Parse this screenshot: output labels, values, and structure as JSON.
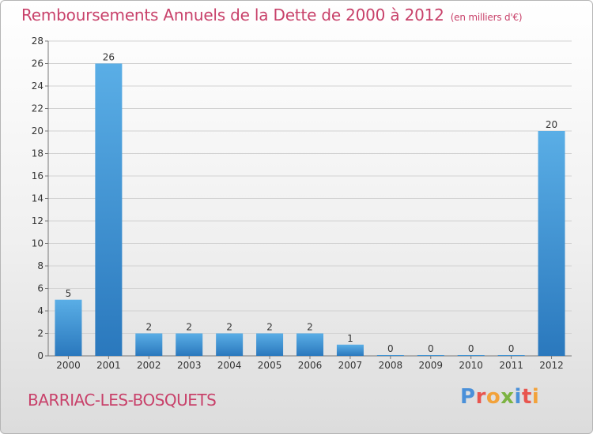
{
  "header": {
    "title": "Remboursements Annuels de la Dette de 2000 à 2012",
    "unit": "(en milliers d'€)"
  },
  "footer": {
    "city": "BARRIAC-LES-BOSQUETS",
    "logo_text": "Proxiti",
    "logo_colors": [
      "#4a90d9",
      "#e8554e",
      "#f2a23b",
      "#7cb342",
      "#4a90d9",
      "#e8554e",
      "#f2a23b"
    ]
  },
  "chart_data": {
    "type": "bar",
    "title": "Remboursements Annuels de la Dette de 2000 à 2012",
    "xlabel": "",
    "ylabel": "",
    "categories": [
      "2000",
      "2001",
      "2002",
      "2003",
      "2004",
      "2005",
      "2006",
      "2007",
      "2008",
      "2009",
      "2010",
      "2011",
      "2012"
    ],
    "values": [
      5,
      26,
      2,
      2,
      2,
      2,
      2,
      1,
      0,
      0,
      0,
      0,
      20
    ],
    "ylim": [
      0,
      28
    ],
    "yticks": [
      0,
      2,
      4,
      6,
      8,
      10,
      12,
      14,
      16,
      18,
      20,
      22,
      24,
      26,
      28
    ],
    "grid": true,
    "bar_color_top": "#5aaee6",
    "bar_color_bottom": "#2a78bd"
  }
}
